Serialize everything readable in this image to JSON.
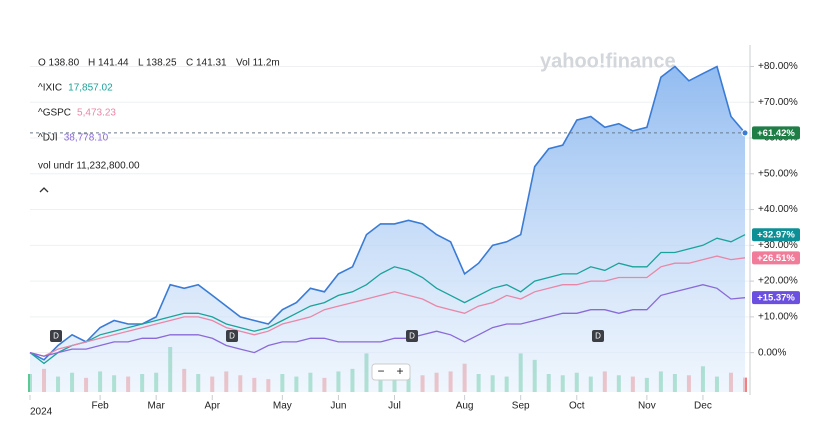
{
  "chart_data": {
    "type": "area",
    "logo": "yahoo!finance",
    "quote": [
      "O 138.80",
      "H 141.44",
      "L 138.25",
      "C 141.31",
      "Vol 11.2m"
    ],
    "volume_legend": "vol undr 11,232,800.00",
    "dividend_label": "D",
    "controls": [
      "−",
      "+"
    ],
    "categories": [
      "2024",
      null,
      null,
      null,
      null,
      "Feb",
      null,
      null,
      null,
      "Mar",
      null,
      null,
      null,
      "Apr",
      null,
      null,
      null,
      null,
      "May",
      null,
      null,
      null,
      "Jun",
      null,
      null,
      null,
      "Jul",
      null,
      null,
      null,
      null,
      "Aug",
      null,
      null,
      null,
      "Sep",
      null,
      null,
      null,
      "Oct",
      null,
      null,
      null,
      null,
      "Nov",
      null,
      null,
      null,
      "Dec",
      null,
      null,
      null
    ],
    "ylim": [
      -11,
      86
    ],
    "yticks": [
      {
        "value": 0,
        "label": "0.00%"
      },
      {
        "value": 10,
        "label": "+10.00%"
      },
      {
        "value": 20,
        "label": "+20.00%"
      },
      {
        "value": 30,
        "label": "+30.00%"
      },
      {
        "value": 40,
        "label": "+40.00%"
      },
      {
        "value": 50,
        "label": "+50.00%"
      },
      {
        "value": 60,
        "label": "+60.00%"
      },
      {
        "value": 70,
        "label": "+70.00%"
      },
      {
        "value": 80,
        "label": "+80.00%"
      }
    ],
    "grid": true,
    "series": [
      {
        "color": "#3a7bd5",
        "badge_color": "#1e7e46",
        "values": [
          0,
          -2,
          2,
          5,
          3,
          7,
          9,
          8,
          8,
          10,
          19,
          18,
          19,
          16,
          13,
          10,
          9,
          8,
          12,
          14,
          18,
          17,
          22,
          24,
          33,
          36,
          36,
          37,
          36,
          33,
          31,
          22,
          25,
          30,
          31,
          33,
          52,
          57,
          58,
          65,
          66,
          63,
          64,
          62,
          63,
          77,
          80,
          76,
          78,
          80,
          66,
          61.42
        ],
        "value_labels": [
          null,
          null,
          null,
          null,
          null,
          null,
          null,
          null,
          null,
          null,
          null,
          null,
          null,
          null,
          null,
          null,
          null,
          null,
          null,
          null,
          null,
          null,
          null,
          null,
          null,
          null,
          null,
          null,
          null,
          null,
          null,
          null,
          null,
          null,
          null,
          null,
          null,
          null,
          null,
          null,
          null,
          null,
          null,
          null,
          null,
          null,
          null,
          null,
          null,
          null,
          null,
          "+61.42%"
        ]
      },
      {
        "name": "^IXIC",
        "legend_value": "17,857.02",
        "color": "#1aa39a",
        "badge_color": "#0e8f96",
        "values": [
          0,
          -3,
          0,
          2,
          3,
          5,
          6,
          7,
          8,
          9,
          10,
          11,
          11,
          10,
          8,
          7,
          6,
          7,
          9,
          11,
          13,
          14,
          16,
          17,
          19,
          22,
          24,
          23,
          21,
          18,
          16,
          14,
          16,
          18,
          19,
          17,
          20,
          21,
          22,
          22,
          24,
          23,
          25,
          24,
          24,
          28,
          28,
          29,
          30,
          32,
          31,
          32.97
        ],
        "value_labels": [
          null,
          null,
          null,
          null,
          null,
          null,
          null,
          null,
          null,
          null,
          null,
          null,
          null,
          null,
          null,
          null,
          null,
          null,
          null,
          null,
          null,
          null,
          null,
          null,
          null,
          null,
          null,
          null,
          null,
          null,
          null,
          null,
          null,
          null,
          null,
          null,
          null,
          null,
          null,
          null,
          null,
          null,
          null,
          null,
          null,
          null,
          null,
          null,
          null,
          null,
          null,
          "+32.97%"
        ]
      },
      {
        "name": "^GSPC",
        "legend_value": "5,473.23",
        "color": "#e887a8",
        "badge_color": "#f07c9a",
        "values": [
          0,
          -1,
          1,
          2,
          3,
          4,
          5,
          6,
          7,
          8,
          9,
          10,
          10,
          9,
          7,
          6,
          5,
          6,
          8,
          9,
          10,
          12,
          13,
          14,
          15,
          16,
          17,
          16,
          15,
          13,
          12,
          11,
          13,
          14,
          16,
          15,
          17,
          18,
          19,
          19,
          20,
          20,
          21,
          21,
          21,
          24,
          25,
          25,
          26,
          27,
          26,
          26.51
        ],
        "value_labels": [
          null,
          null,
          null,
          null,
          null,
          null,
          null,
          null,
          null,
          null,
          null,
          null,
          null,
          null,
          null,
          null,
          null,
          null,
          null,
          null,
          null,
          null,
          null,
          null,
          null,
          null,
          null,
          null,
          null,
          null,
          null,
          null,
          null,
          null,
          null,
          null,
          null,
          null,
          null,
          null,
          null,
          null,
          null,
          null,
          null,
          null,
          null,
          null,
          null,
          null,
          null,
          "+26.51%"
        ]
      },
      {
        "name": "^DJI",
        "legend_value": "38,778.10",
        "color": "#8a6ad8",
        "badge_color": "#6a4fe0",
        "values": [
          0,
          -1,
          0,
          1,
          1,
          2,
          3,
          3,
          4,
          4,
          5,
          5,
          5,
          4,
          2,
          1,
          0,
          2,
          3,
          3,
          4,
          4,
          3,
          3,
          3,
          3,
          4,
          4,
          5,
          6,
          5,
          3,
          5,
          7,
          8,
          8,
          9,
          10,
          11,
          11,
          12,
          12,
          11,
          12,
          12,
          16,
          17,
          18,
          19,
          18,
          15,
          15.37
        ],
        "value_labels": [
          null,
          null,
          null,
          null,
          null,
          null,
          null,
          null,
          null,
          null,
          null,
          null,
          null,
          null,
          null,
          null,
          null,
          null,
          null,
          null,
          null,
          null,
          null,
          null,
          null,
          null,
          null,
          null,
          null,
          null,
          null,
          null,
          null,
          null,
          null,
          null,
          null,
          null,
          null,
          null,
          null,
          null,
          null,
          null,
          null,
          null,
          null,
          null,
          null,
          null,
          null,
          "+15.37%"
        ]
      }
    ],
    "volume": [
      14,
      18,
      12,
      15,
      11,
      16,
      13,
      12,
      14,
      15,
      35,
      18,
      14,
      12,
      16,
      13,
      11,
      10,
      14,
      12,
      15,
      11,
      16,
      18,
      30,
      20,
      17,
      14,
      13,
      15,
      16,
      22,
      14,
      13,
      12,
      30,
      25,
      14,
      13,
      15,
      12,
      16,
      13,
      12,
      11,
      16,
      14,
      13,
      20,
      12,
      15,
      11.2
    ]
  }
}
